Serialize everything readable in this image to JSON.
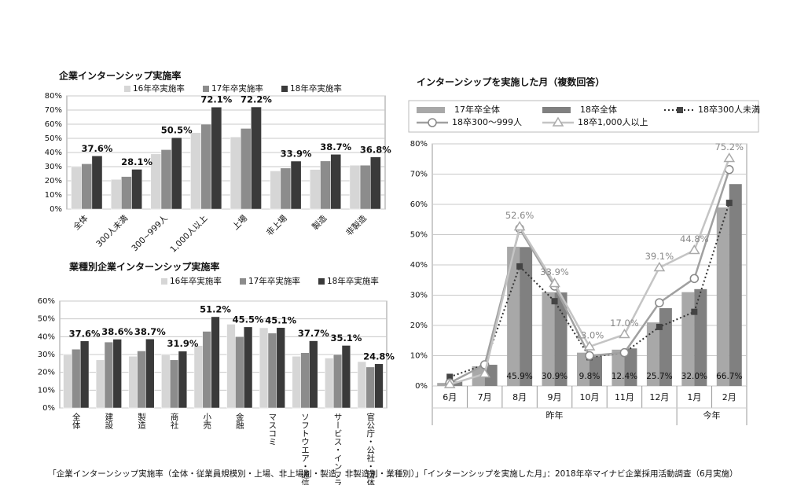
{
  "chart_data": [
    {
      "type": "bar",
      "title": "企業インターンシップ実施率",
      "categories": [
        "全体",
        "300人未満",
        "300~999人",
        "1,000人以上",
        "上場",
        "非上場",
        "製造",
        "非製造"
      ],
      "series": [
        {
          "name": "16年卒実施率",
          "color": "#d6d6d6",
          "values": [
            30,
            21,
            39,
            54,
            51,
            27,
            28,
            31
          ]
        },
        {
          "name": "17年卒実施率",
          "color": "#8c8c8c",
          "values": [
            32,
            23,
            42,
            60,
            57,
            29,
            34,
            31
          ]
        },
        {
          "name": "18年卒実施率",
          "color": "#3a3a3a",
          "values": [
            37.6,
            28.1,
            50.5,
            72.1,
            72.2,
            33.9,
            38.7,
            36.8
          ],
          "value_labels": [
            "37.6%",
            "28.1%",
            "50.5%",
            "72.1%",
            "72.2%",
            "33.9%",
            "38.7%",
            "36.8%"
          ]
        }
      ],
      "ylim": [
        0,
        80
      ],
      "yticks": [
        {
          "value": 0,
          "label": "0%"
        },
        {
          "value": 10,
          "label": "10%"
        },
        {
          "value": 20,
          "label": "20%"
        },
        {
          "value": 30,
          "label": "30%"
        },
        {
          "value": 40,
          "label": "40%"
        },
        {
          "value": 50,
          "label": "50%"
        },
        {
          "value": 60,
          "label": "60%"
        },
        {
          "value": 70,
          "label": "70%"
        },
        {
          "value": 80,
          "label": "80%"
        }
      ],
      "grid": true
    },
    {
      "type": "bar",
      "title": "業種別企業インターンシップ実施率",
      "categories": [
        "全体",
        "建設",
        "製造",
        "商社",
        "小売",
        "金融",
        "マスコミ",
        "ソフトウエア・通信",
        "サービス・インフラ",
        "官公庁・公社・団体"
      ],
      "series": [
        {
          "name": "16年卒実施率",
          "color": "#d6d6d6",
          "values": [
            30,
            27,
            29,
            30,
            35,
            47,
            45,
            29,
            28,
            26
          ]
        },
        {
          "name": "17年卒実施率",
          "color": "#8c8c8c",
          "values": [
            33,
            37,
            32,
            27,
            43,
            40,
            42,
            31,
            30,
            23
          ]
        },
        {
          "name": "18年卒実施率",
          "color": "#3a3a3a",
          "values": [
            37.6,
            38.6,
            38.7,
            31.9,
            51.2,
            45.5,
            45.1,
            37.7,
            35.1,
            24.8
          ],
          "value_labels": [
            "37.6%",
            "38.6%",
            "38.7%",
            "31.9%",
            "51.2%",
            "45.5%",
            "45.1%",
            "37.7%",
            "35.1%",
            "24.8%"
          ]
        }
      ],
      "ylim": [
        0,
        60
      ],
      "yticks": [
        {
          "value": 0,
          "label": "0%"
        },
        {
          "value": 10,
          "label": "10%"
        },
        {
          "value": 20,
          "label": "20%"
        },
        {
          "value": 30,
          "label": "30%"
        },
        {
          "value": 40,
          "label": "40%"
        },
        {
          "value": 50,
          "label": "50%"
        },
        {
          "value": 60,
          "label": "60%"
        }
      ],
      "grid": true
    },
    {
      "type": "combo",
      "title": "インターンシップを実施した月（複数回答）",
      "categories": [
        "6月",
        "7月",
        "8月",
        "9月",
        "10月",
        "11月",
        "12月",
        "1月",
        "2月"
      ],
      "group_labels": [
        "昨年",
        "今年"
      ],
      "series": [
        {
          "name": "17年卒全体",
          "kind": "bar",
          "color": "#a8a8a8",
          "values": [
            1,
            6.5,
            46,
            31,
            11,
            12,
            21,
            31,
            59
          ]
        },
        {
          "name": "18卒全体",
          "kind": "bar",
          "color": "#808080",
          "values": [
            1.5,
            7,
            45.9,
            30.9,
            9.8,
            12.4,
            25.7,
            32.0,
            66.7
          ],
          "value_labels": [
            null,
            null,
            "45.9%",
            "30.9%",
            "9.8%",
            "12.4%",
            "25.7%",
            "32.0%",
            "66.7%"
          ]
        },
        {
          "name": "18卒300人未満",
          "kind": "line",
          "marker": "square",
          "dashed": true,
          "color": "#333333",
          "values": [
            3,
            7,
            39.5,
            28,
            9.5,
            11,
            19.5,
            24.5,
            60.5
          ]
        },
        {
          "name": "18卒300～999人",
          "kind": "line",
          "marker": "circle",
          "dashed": false,
          "color": "#a0a0a0",
          "values": [
            1,
            7,
            52,
            33,
            10,
            11,
            27.5,
            35.5,
            71.5
          ]
        },
        {
          "name": "18卒1,000人以上",
          "kind": "line",
          "marker": "triangle",
          "dashed": false,
          "color": "#c4c4c4",
          "values": [
            0.5,
            4,
            52.6,
            33.9,
            13.0,
            17.0,
            39.1,
            44.8,
            75.2
          ],
          "value_labels": [
            null,
            null,
            "52.6%",
            "33.9%",
            "13.0%",
            "17.0%",
            "39.1%",
            "44.8%",
            "75.2%"
          ]
        }
      ],
      "ylim": [
        0,
        80
      ],
      "yticks": [
        {
          "value": 0,
          "label": "0%"
        },
        {
          "value": 10,
          "label": "10%"
        },
        {
          "value": 20,
          "label": "20%"
        },
        {
          "value": 30,
          "label": "30%"
        },
        {
          "value": 40,
          "label": "40%"
        },
        {
          "value": 50,
          "label": "50%"
        },
        {
          "value": 60,
          "label": "60%"
        },
        {
          "value": 70,
          "label": "70%"
        },
        {
          "value": 80,
          "label": "80%"
        }
      ],
      "grid": true
    }
  ],
  "caption": "「企業インターンシップ実施率（全体・従業員規模別・上場、非上場別・製造、非製造別・業種別）」「インターンシップを実施した月」：2018年卒マイナビ企業採用活動調査（6月実施）"
}
